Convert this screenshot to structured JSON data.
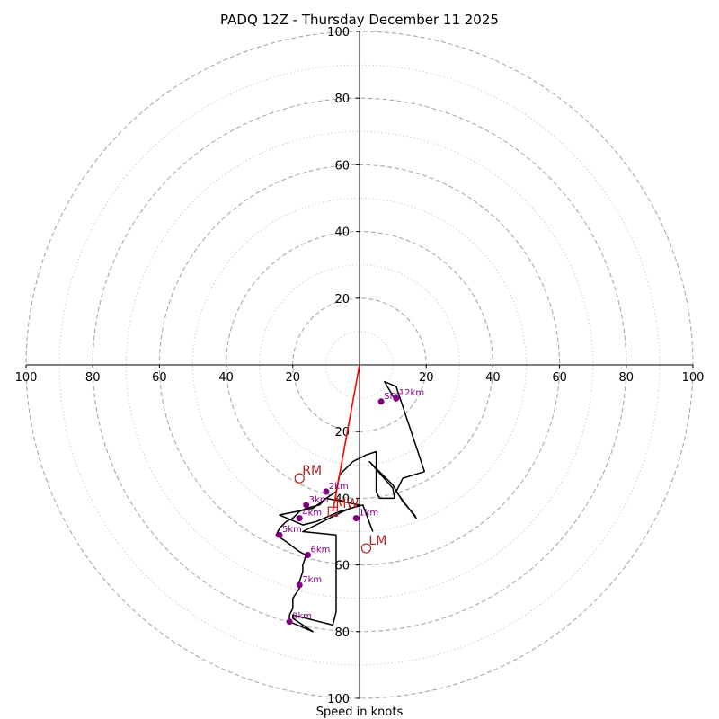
{
  "chart_data": {
    "type": "hodograph",
    "title": "PADQ 12Z - Thursday December 11 2025",
    "xlabel": "Speed in knots",
    "range": [
      -100,
      100
    ],
    "grid": true,
    "ring_radii": [
      10,
      20,
      30,
      40,
      50,
      60,
      70,
      80,
      90,
      100
    ],
    "dashed_rings": [
      20,
      40,
      60,
      80,
      100
    ],
    "dotted_rings": [
      10,
      30,
      50,
      70,
      90
    ],
    "x_ticks": [
      {
        "value": -100,
        "label": "100"
      },
      {
        "value": -80,
        "label": "80"
      },
      {
        "value": -60,
        "label": "60"
      },
      {
        "value": -40,
        "label": "40"
      },
      {
        "value": -20,
        "label": "20"
      },
      {
        "value": 20,
        "label": "20"
      },
      {
        "value": 40,
        "label": "40"
      },
      {
        "value": 60,
        "label": "60"
      },
      {
        "value": 80,
        "label": "80"
      },
      {
        "value": 100,
        "label": "100"
      }
    ],
    "y_ticks": [
      {
        "value": 100,
        "label": "100"
      },
      {
        "value": 80,
        "label": "80"
      },
      {
        "value": 60,
        "label": "60"
      },
      {
        "value": 40,
        "label": "40"
      },
      {
        "value": 20,
        "label": "20"
      },
      {
        "value": -20,
        "label": "20"
      },
      {
        "value": -40,
        "label": "40"
      },
      {
        "value": -60,
        "label": "60"
      },
      {
        "value": -80,
        "label": "80"
      },
      {
        "value": -100,
        "label": "100"
      }
    ],
    "series": [
      {
        "color": "#000000",
        "points": [
          [
            11,
            -11
          ],
          [
            7.5,
            -5
          ],
          [
            11,
            -6.5
          ],
          [
            19.5,
            -32
          ],
          [
            13,
            -34
          ],
          [
            11,
            -38
          ],
          [
            17,
            -46
          ],
          [
            16.5,
            -45
          ],
          [
            13,
            -41
          ],
          [
            10,
            -36
          ],
          [
            3,
            -29
          ],
          [
            10,
            -37
          ],
          [
            10.5,
            -40
          ],
          [
            6,
            -40
          ],
          [
            5,
            -38
          ],
          [
            5,
            -26
          ],
          [
            2,
            -27
          ],
          [
            -2,
            -29
          ],
          [
            -5,
            -32
          ],
          [
            -6,
            -33
          ],
          [
            -7,
            -38
          ],
          [
            -10,
            -40
          ],
          [
            -12,
            -42
          ],
          [
            -16,
            -43
          ],
          [
            -18,
            -44
          ],
          [
            -20,
            -46
          ],
          [
            -22,
            -47
          ],
          [
            -24,
            -49
          ],
          [
            -25,
            -51
          ],
          [
            -22,
            -53
          ],
          [
            -18,
            -56
          ],
          [
            -16,
            -57
          ],
          [
            -17,
            -60
          ],
          [
            -17,
            -62
          ],
          [
            -18,
            -65
          ],
          [
            -18,
            -67
          ],
          [
            -20,
            -70
          ],
          [
            -20,
            -73
          ],
          [
            -21,
            -75
          ],
          [
            -21,
            -77
          ],
          [
            -14,
            -80
          ],
          [
            -20,
            -76
          ],
          [
            -20,
            -75
          ],
          [
            -8,
            -78
          ],
          [
            -7,
            -74
          ],
          [
            -7,
            -68
          ],
          [
            -7,
            -56
          ],
          [
            -7,
            -51
          ],
          [
            -17,
            -50
          ],
          [
            -5,
            -44
          ],
          [
            0,
            -42
          ],
          [
            -10,
            -40
          ],
          [
            -14,
            -43
          ],
          [
            -24,
            -45
          ],
          [
            -17,
            -48
          ],
          [
            -13,
            -47
          ],
          [
            -6,
            -44
          ],
          [
            1,
            -42
          ],
          [
            4,
            -50
          ]
        ]
      },
      {
        "name": "MW",
        "color": "#ff0000",
        "points": [
          [
            0,
            0
          ],
          [
            -8,
            -44
          ]
        ]
      }
    ],
    "height_points": [
      {
        "label": "SFC",
        "u": 6.5,
        "v": -11
      },
      {
        "label": "1km",
        "u": -1,
        "v": -46
      },
      {
        "label": "2km",
        "u": -10,
        "v": -38
      },
      {
        "label": "3km",
        "u": -16,
        "v": -42
      },
      {
        "label": "4km",
        "u": -18,
        "v": -46
      },
      {
        "label": "5km",
        "u": -24,
        "v": -51
      },
      {
        "label": "6km",
        "u": -15.5,
        "v": -57
      },
      {
        "label": "7km",
        "u": -18,
        "v": -66
      },
      {
        "label": "8km",
        "u": -21,
        "v": -77
      },
      {
        "label": "12km",
        "u": 11,
        "v": -10
      }
    ],
    "motion_markers": [
      {
        "label": "RM",
        "u": -18,
        "v": -34,
        "marker": "circle"
      },
      {
        "label": "MW",
        "u": -8,
        "v": -44,
        "marker": "square"
      },
      {
        "label": "LM",
        "u": 2,
        "v": -55,
        "marker": "circle"
      }
    ],
    "colors": {
      "trace": "#000000",
      "mean_wind": "#ff0000",
      "height_points": "#800080",
      "motion": "#b22222",
      "grid": "#aaaaaa"
    }
  }
}
